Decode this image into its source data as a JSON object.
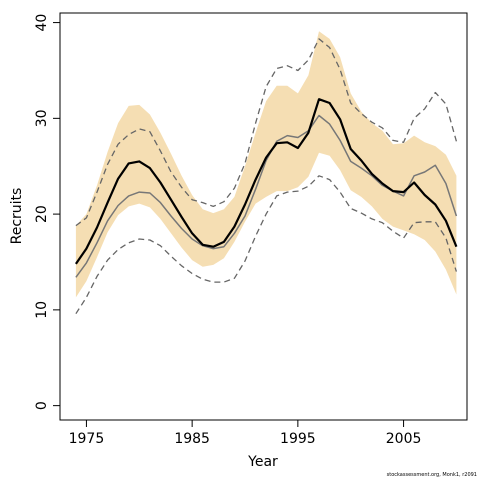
{
  "chart_data": {
    "type": "line",
    "title": "",
    "xlabel": "Year",
    "ylabel": "Recruits",
    "xlim": [
      1972.5,
      2011
    ],
    "ylim": [
      -1.5,
      41
    ],
    "x_ticks": [
      1975,
      1985,
      1995,
      2005
    ],
    "y_ticks": [
      0,
      10,
      20,
      30,
      40
    ],
    "grid": false,
    "legend": "none",
    "colors": {
      "band_fill": "#f5deb3",
      "outer_dashed": "#666666",
      "median": "#000000",
      "mean": "#777777"
    },
    "x": [
      1974,
      1975,
      1976,
      1977,
      1978,
      1979,
      1980,
      1981,
      1982,
      1983,
      1984,
      1985,
      1986,
      1987,
      1988,
      1989,
      1990,
      1991,
      1992,
      1993,
      1994,
      1995,
      1996,
      1997,
      1998,
      1999,
      2000,
      2001,
      2002,
      2003,
      2004,
      2005,
      2006,
      2007,
      2008,
      2009,
      2010
    ],
    "series": [
      {
        "role": "band_upper",
        "values": [
          18.8,
          20.0,
          23.0,
          26.5,
          29.5,
          31.3,
          31.4,
          30.4,
          28.5,
          26.3,
          24.0,
          22.0,
          20.5,
          20.1,
          20.5,
          21.8,
          25.0,
          28.5,
          31.8,
          33.4,
          33.4,
          32.6,
          34.5,
          39.1,
          38.3,
          36.4,
          32.6,
          30.7,
          29.5,
          28.7,
          27.3,
          27.4,
          28.2,
          27.5,
          27.1,
          26.2,
          24.0
        ]
      },
      {
        "role": "band_lower",
        "values": [
          11.3,
          13.0,
          15.5,
          18.1,
          19.9,
          20.8,
          21.1,
          20.7,
          19.5,
          18.0,
          16.5,
          15.2,
          14.5,
          14.7,
          15.4,
          17.1,
          19.2,
          21.1,
          21.8,
          22.4,
          22.4,
          22.8,
          23.9,
          26.4,
          26.1,
          24.6,
          22.5,
          21.8,
          20.8,
          19.5,
          18.7,
          18.3,
          17.9,
          17.3,
          16.1,
          14.2,
          11.6
        ]
      },
      {
        "role": "upper_dashed",
        "values": [
          18.8,
          19.6,
          22.3,
          25.2,
          27.3,
          28.3,
          28.9,
          28.6,
          26.6,
          24.4,
          22.8,
          21.5,
          21.2,
          20.8,
          21.3,
          22.7,
          25.3,
          29.5,
          33.3,
          35.2,
          35.5,
          35.0,
          36.1,
          38.3,
          37.4,
          35.1,
          31.6,
          30.5,
          29.6,
          29.0,
          27.7,
          27.5,
          30.0,
          31.0,
          32.7,
          31.5,
          27.6
        ]
      },
      {
        "role": "lower_dashed",
        "values": [
          9.6,
          11.3,
          13.5,
          15.2,
          16.3,
          17.0,
          17.4,
          17.3,
          16.7,
          15.6,
          14.6,
          13.8,
          13.2,
          12.9,
          12.9,
          13.3,
          15.1,
          17.7,
          20.0,
          21.9,
          22.3,
          22.4,
          22.9,
          24.0,
          23.6,
          22.3,
          20.6,
          20.1,
          19.5,
          19.1,
          18.2,
          17.5,
          19.1,
          19.2,
          19.2,
          17.5,
          14.0
        ]
      },
      {
        "role": "median",
        "values": [
          14.8,
          16.4,
          18.6,
          21.2,
          23.7,
          25.3,
          25.5,
          24.8,
          23.3,
          21.5,
          19.7,
          18.0,
          16.8,
          16.6,
          17.1,
          18.7,
          21.0,
          23.6,
          25.9,
          27.4,
          27.5,
          26.9,
          28.5,
          32.0,
          31.6,
          29.9,
          26.8,
          25.6,
          24.2,
          23.2,
          22.4,
          22.3,
          23.3,
          22.0,
          21.0,
          19.3,
          16.6
        ]
      },
      {
        "role": "mean",
        "values": [
          13.4,
          14.9,
          17.0,
          19.3,
          20.9,
          21.9,
          22.3,
          22.2,
          21.2,
          19.8,
          18.5,
          17.4,
          16.7,
          16.4,
          16.6,
          18.0,
          19.8,
          22.6,
          25.6,
          27.6,
          28.2,
          28.0,
          28.7,
          30.3,
          29.4,
          27.7,
          25.5,
          24.8,
          24.0,
          23.0,
          22.4,
          21.9,
          24.0,
          24.4,
          25.1,
          23.2,
          19.8
        ]
      }
    ]
  },
  "footer_text": "stockassessment.org, Monk1, r2091"
}
